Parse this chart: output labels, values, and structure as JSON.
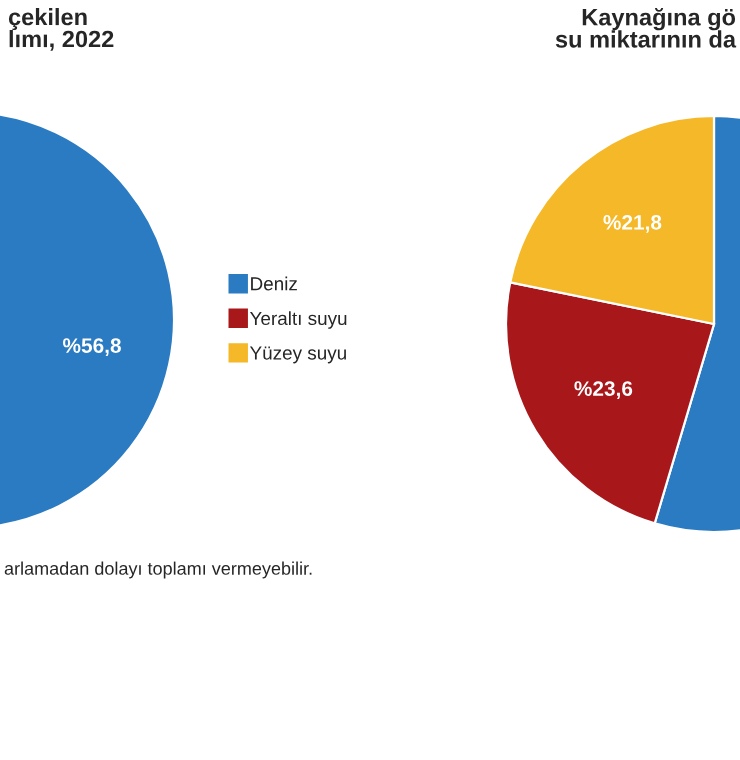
{
  "chart_data": [
    {
      "type": "pie",
      "title": "çekilen\nlımı, 2022",
      "categories": [
        "Deniz",
        "Yeraltı suyu",
        "Yüzey suyu"
      ],
      "values": [
        56.8,
        null,
        null
      ],
      "colors": [
        "#2b7bc3",
        "#a8181b",
        "#f5b828"
      ],
      "value_labels": [
        "%56,8",
        null,
        null
      ],
      "legend": "right",
      "annotations": [
        "arlamadan dolayı toplamı vermeyebilir."
      ]
    },
    {
      "type": "pie",
      "title": "Kaynağına gö\nsu miktarının da",
      "categories": [
        null,
        null,
        null
      ],
      "values": [
        54.6,
        23.6,
        21.8
      ],
      "colors": [
        "#2b7bc3",
        "#a8181b",
        "#f5b828"
      ],
      "value_labels": [
        null,
        "%23,6",
        "%21,8"
      ]
    }
  ]
}
